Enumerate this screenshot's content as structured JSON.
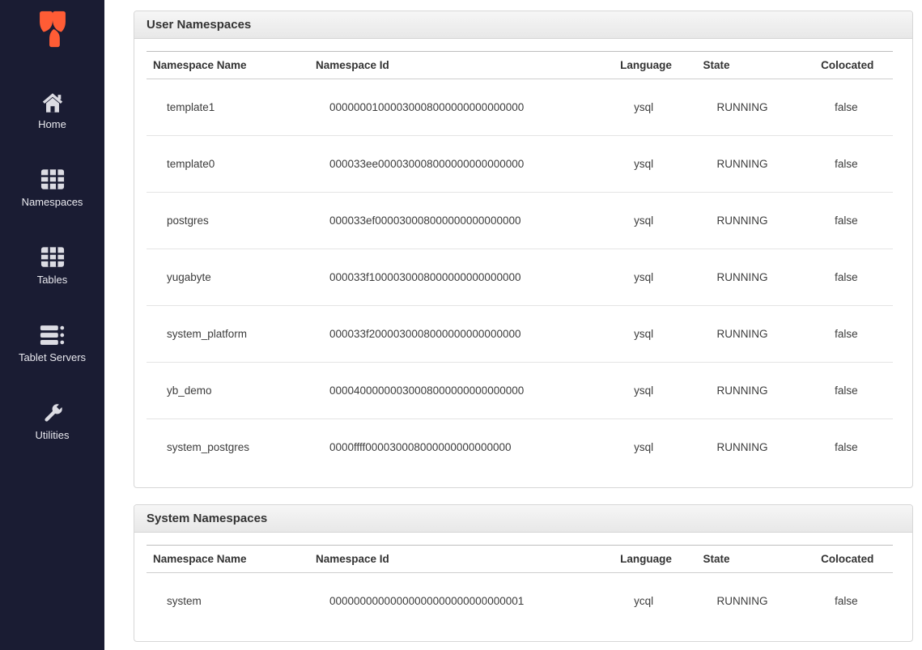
{
  "sidebar": {
    "logo": "yugabyte-logo",
    "items": [
      {
        "label": "Home",
        "icon": "home-icon"
      },
      {
        "label": "Namespaces",
        "icon": "grid-icon"
      },
      {
        "label": "Tables",
        "icon": "grid-icon"
      },
      {
        "label": "Tablet Servers",
        "icon": "server-stack-icon"
      },
      {
        "label": "Utilities",
        "icon": "wrench-icon"
      }
    ]
  },
  "panels": [
    {
      "title": "User Namespaces",
      "columns": [
        "Namespace Name",
        "Namespace Id",
        "Language",
        "State",
        "Colocated"
      ],
      "rows": [
        [
          "template1",
          "00000001000030008000000000000000",
          "ysql",
          "RUNNING",
          "false"
        ],
        [
          "template0",
          "000033ee000030008000000000000000",
          "ysql",
          "RUNNING",
          "false"
        ],
        [
          "postgres",
          "000033ef000030008000000000000000",
          "ysql",
          "RUNNING",
          "false"
        ],
        [
          "yugabyte",
          "000033f1000030008000000000000000",
          "ysql",
          "RUNNING",
          "false"
        ],
        [
          "system_platform",
          "000033f2000030008000000000000000",
          "ysql",
          "RUNNING",
          "false"
        ],
        [
          "yb_demo",
          "00004000000030008000000000000000",
          "ysql",
          "RUNNING",
          "false"
        ],
        [
          "system_postgres",
          "0000ffff000030008000000000000000",
          "ysql",
          "RUNNING",
          "false"
        ]
      ]
    },
    {
      "title": "System Namespaces",
      "columns": [
        "Namespace Name",
        "Namespace Id",
        "Language",
        "State",
        "Colocated"
      ],
      "rows": [
        [
          "system",
          "00000000000000000000000000000001",
          "ycql",
          "RUNNING",
          "false"
        ]
      ]
    }
  ],
  "colors": {
    "accent": "#ff5c35",
    "sidebar_bg": "#1a1c33"
  }
}
